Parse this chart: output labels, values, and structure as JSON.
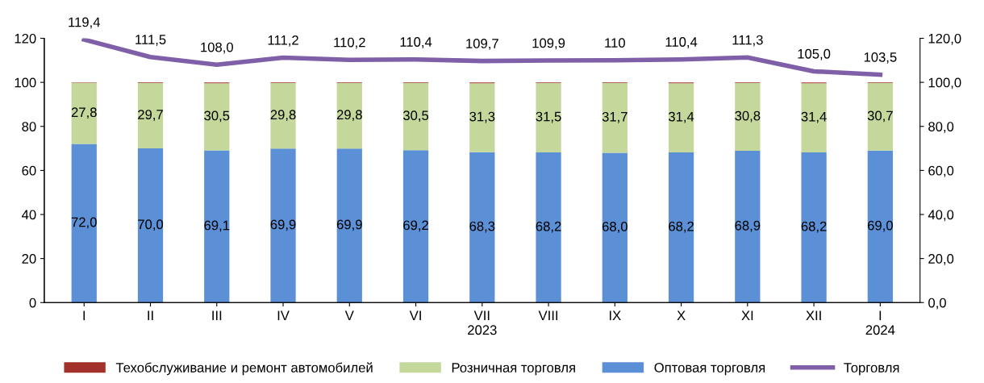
{
  "chart_data": {
    "type": "bar",
    "stacked": true,
    "categories": [
      "I",
      "II",
      "III",
      "IV",
      "V",
      "VI",
      "VII\n2023",
      "VIII",
      "IX",
      "X",
      "XI",
      "XII",
      "I\n2024"
    ],
    "series": [
      {
        "name": "Оптовая торговля",
        "color": "#5b8fd6",
        "values": [
          72.0,
          70.0,
          69.1,
          69.9,
          69.9,
          69.2,
          68.3,
          68.2,
          68.0,
          68.2,
          68.9,
          68.2,
          69.0
        ],
        "value_labels": [
          "72,0",
          "70,0",
          "69,1",
          "69,9",
          "69,9",
          "69,2",
          "68,3",
          "68,2",
          "68,0",
          "68,2",
          "68,9",
          "68,2",
          "69,0"
        ]
      },
      {
        "name": "Розничная торговля",
        "color": "#c4d89c",
        "values": [
          27.8,
          29.7,
          30.5,
          29.8,
          29.8,
          30.5,
          31.3,
          31.5,
          31.7,
          31.4,
          30.8,
          31.4,
          30.7
        ],
        "value_labels": [
          "27,8",
          "29,7",
          "30,5",
          "29,8",
          "29,8",
          "30,5",
          "31,3",
          "31,5",
          "31,7",
          "31,4",
          "30,8",
          "31,4",
          "30,7"
        ]
      },
      {
        "name": "Техобслуживание и ремонт автомобилей",
        "color": "#a3312b",
        "values": [
          0.2,
          0.3,
          0.4,
          0.3,
          0.3,
          0.3,
          0.4,
          0.3,
          0.3,
          0.4,
          0.3,
          0.4,
          0.3
        ]
      },
      {
        "name": "Торговля",
        "type": "line",
        "axis": "y2",
        "color": "#7f5fa8",
        "values": [
          119.4,
          111.5,
          108.0,
          111.2,
          110.2,
          110.4,
          109.7,
          109.9,
          110,
          110.4,
          111.3,
          105.0,
          103.5
        ],
        "value_labels": [
          "119,4",
          "111,5",
          "108,0",
          "111,2",
          "110,2",
          "110,4",
          "109,7",
          "109,9",
          "110",
          "110,4",
          "111,3",
          "105,0",
          "103,5"
        ]
      }
    ],
    "ylim": [
      0,
      120
    ],
    "yticks": [
      0,
      20,
      40,
      60,
      80,
      100,
      120
    ],
    "y2lim": [
      0,
      120
    ],
    "y2ticks": [
      {
        "value": 0,
        "label": "0,0"
      },
      {
        "value": 20,
        "label": "20,0"
      },
      {
        "value": 40,
        "label": "40,0"
      },
      {
        "value": 60,
        "label": "60,0"
      },
      {
        "value": 80,
        "label": "80,0"
      },
      {
        "value": 100,
        "label": "100,0"
      },
      {
        "value": 120,
        "label": "120,0"
      }
    ],
    "legend": "bottom",
    "grid": false
  }
}
